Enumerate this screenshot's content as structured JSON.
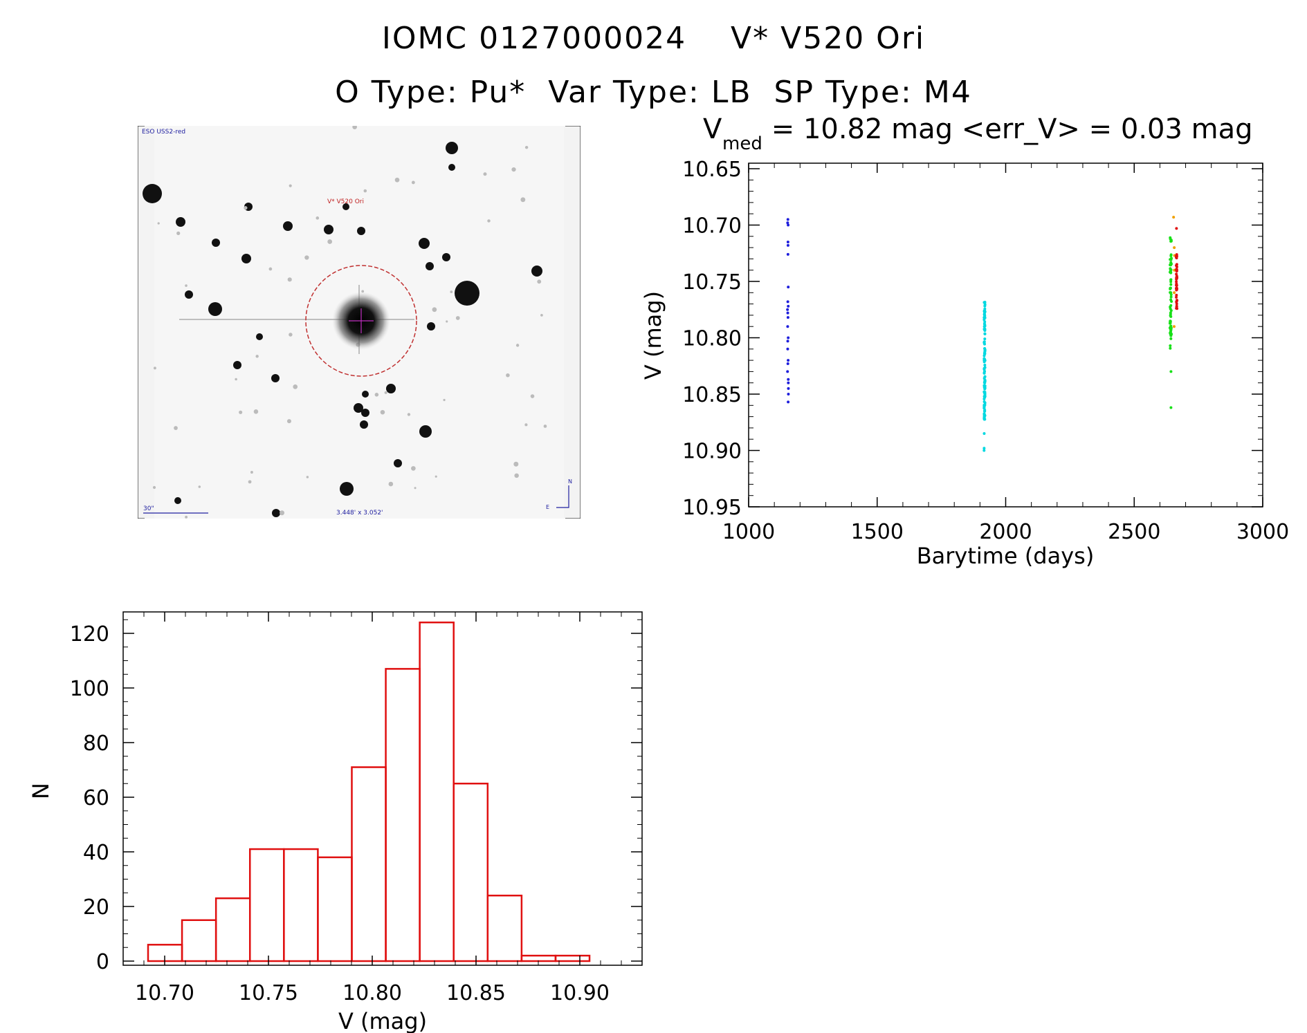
{
  "header": {
    "line1": "IOMC 0127000024    V* V520 Ori",
    "line2": "O Type: Pu*  Var Type: LB  SP Type: M4"
  },
  "finder": {
    "survey_label": "ESO USS2-red",
    "target_label": "V* V520 Ori",
    "scale_label": "30\"",
    "size_label": "3.448' x 3.052'",
    "north_label": "N",
    "east_label": "E"
  },
  "chart_data": [
    {
      "type": "scatter",
      "title_main": "V",
      "title_sub": "med",
      "title_rest": " = 10.82 mag <err_V> = 0.03 mag",
      "xlabel": "Barytime (days)",
      "ylabel": "V (mag)",
      "xlim": [
        1000,
        3000
      ],
      "ylim": [
        10.95,
        10.65
      ],
      "xticks": [
        "1000",
        "1500",
        "2000",
        "2500",
        "3000"
      ],
      "yticks": [
        "10.65",
        "10.70",
        "10.75",
        "10.80",
        "10.85",
        "10.90",
        "10.95"
      ],
      "series": [
        {
          "color": "#1e1edc",
          "x_center": 1153,
          "x_spread": 4,
          "y": [
            10.695,
            10.698,
            10.7,
            10.715,
            10.718,
            10.726,
            10.755,
            10.768,
            10.772,
            10.775,
            10.778,
            10.782,
            10.79,
            10.8,
            10.803,
            10.81,
            10.82,
            10.823,
            10.83,
            10.837,
            10.84,
            10.845,
            10.85,
            10.857
          ]
        },
        {
          "color": "#00d8e0",
          "x_center": 1918,
          "x_spread": 4,
          "y_range": [
            10.768,
            10.873
          ],
          "count": 110,
          "extra_y": [
            10.885,
            10.898,
            10.9
          ]
        },
        {
          "color": "#18e018",
          "x_center": 2642,
          "x_spread": 6,
          "y_range": [
            10.71,
            10.81
          ],
          "count": 70,
          "extra_y": [
            10.83,
            10.862
          ]
        },
        {
          "color": "#f0a000",
          "x_center": 2655,
          "x_spread": 4,
          "y": [
            10.693,
            10.72,
            10.727,
            10.74,
            10.76,
            10.79
          ]
        },
        {
          "color": "#e01010",
          "x_center": 2665,
          "x_spread": 3,
          "y_range": [
            10.725,
            10.775
          ],
          "count": 45,
          "extra_y": [
            10.703
          ]
        }
      ]
    },
    {
      "type": "bar",
      "xlabel": "V (mag)",
      "ylabel": "N",
      "xlim": [
        10.68,
        10.93
      ],
      "ylim": [
        0,
        130
      ],
      "xticks": [
        "10.70",
        "10.75",
        "10.80",
        "10.85",
        "10.90"
      ],
      "yticks": [
        "0",
        "20",
        "40",
        "60",
        "80",
        "100",
        "120"
      ],
      "bin_start": 10.692,
      "bin_width": 0.01636,
      "values": [
        6,
        15,
        23,
        41,
        41,
        38,
        71,
        107,
        124,
        65,
        24,
        2,
        2
      ],
      "bar_color": "#e01010"
    }
  ]
}
